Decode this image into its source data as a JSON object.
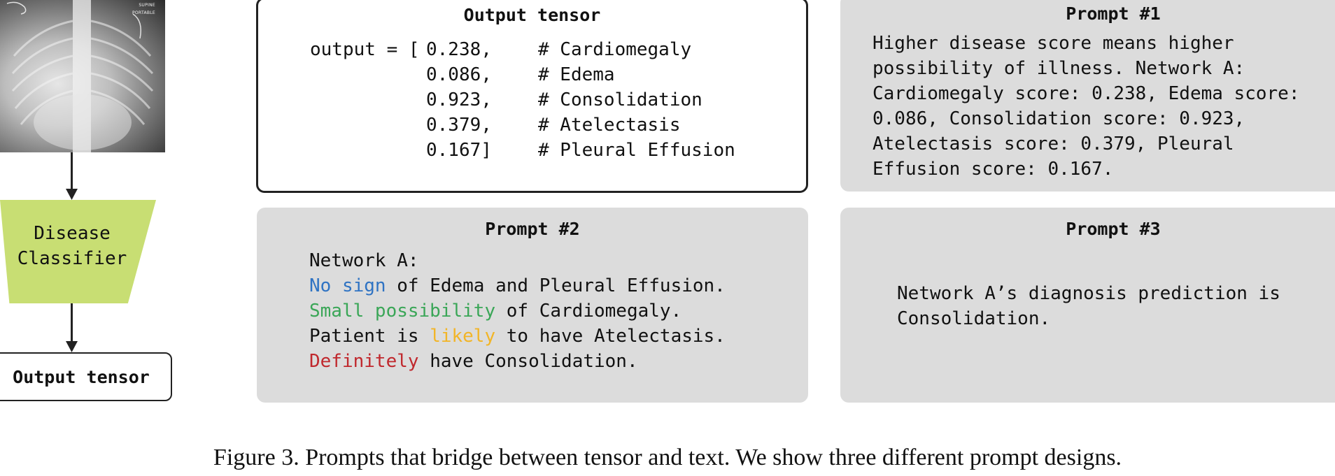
{
  "xray": {
    "tag_line1": "SUPINE",
    "tag_line2": "PORTABLE"
  },
  "classifier": {
    "line1": "Disease",
    "line2": "Classifier"
  },
  "left_output_box": {
    "label": "Output tensor"
  },
  "output_panel": {
    "title": "Output tensor",
    "rows": [
      {
        "prefix": "output = [",
        "value": "0.238,",
        "comment": "# Cardiomegaly"
      },
      {
        "prefix": "",
        "value": "0.086,",
        "comment": "# Edema"
      },
      {
        "prefix": "",
        "value": "0.923,",
        "comment": "# Consolidation"
      },
      {
        "prefix": "",
        "value": "0.379,",
        "comment": "# Atelectasis"
      },
      {
        "prefix": "",
        "value": "0.167]",
        "comment": "# Pleural Effusion"
      }
    ]
  },
  "prompt1": {
    "title": "Prompt #1",
    "lines": [
      "Higher disease score means higher",
      "possibility of illness. Network A:",
      "Cardiomegaly score: 0.238, Edema score:",
      "0.086, Consolidation score: 0.923,",
      "Atelectasis score: 0.379, Pleural",
      "Effusion score: 0.167."
    ]
  },
  "prompt2": {
    "title": "Prompt #2",
    "line1": "Network A:",
    "line2": {
      "highlight": "No sign",
      "rest": " of Edema and Pleural Effusion."
    },
    "line3": {
      "highlight": "Small possibility",
      "rest": " of Cardiomegaly."
    },
    "line4": {
      "before": "Patient is ",
      "highlight": "likely",
      "rest": " to have Atelectasis."
    },
    "line5": {
      "highlight": "Definitely",
      "rest": " have Consolidation."
    },
    "colors": {
      "no_sign": "#2f73c3",
      "small_possibility": "#3aa657",
      "likely": "#f2b527",
      "definitely": "#c0282d"
    }
  },
  "prompt3": {
    "title": "Prompt #3",
    "lines": [
      "Network A’s diagnosis prediction is",
      "Consolidation."
    ]
  },
  "caption": "Figure 3. Prompts that bridge between tensor and text. We show three different prompt designs."
}
